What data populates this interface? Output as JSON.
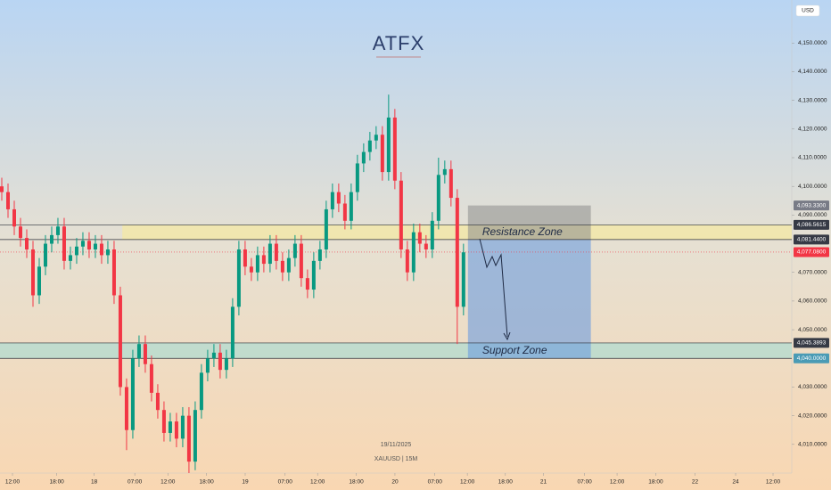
{
  "chart_data": {
    "type": "candlestick",
    "currency": "USD",
    "watermark": {
      "logo": "ATFX",
      "date": "19/11/2025",
      "symbol": "XAUUSD | 15M"
    },
    "up_color": "#089981",
    "down_color": "#f23645",
    "x": [
      0,
      1,
      2,
      3,
      4,
      5,
      6,
      7,
      8,
      9,
      10,
      11,
      12,
      13,
      14,
      15,
      16,
      17,
      18,
      19,
      20,
      21,
      22,
      23,
      24,
      25,
      26,
      27,
      28,
      29,
      30,
      31,
      32,
      33,
      34,
      35,
      36,
      37,
      38,
      39,
      40,
      41,
      42,
      43,
      44,
      45,
      46,
      47,
      48,
      49,
      50,
      51,
      52,
      53,
      54,
      55,
      56,
      57,
      58,
      59,
      60,
      61,
      62,
      63,
      64,
      65,
      66,
      67,
      68,
      69,
      70,
      71,
      72,
      73,
      74
    ],
    "open": [
      4100,
      4098,
      4092,
      4086,
      4082,
      4078,
      4062,
      4072,
      4080,
      4083,
      4086,
      4074,
      4076,
      4079,
      4081,
      4078,
      4080,
      4076,
      4078,
      4062,
      4030,
      4015,
      4040,
      4045,
      4038,
      4028,
      4022,
      4014,
      4018,
      4012,
      4020,
      4004,
      4022,
      4035,
      4040,
      4042,
      4036,
      4040,
      4058,
      4078,
      4072,
      4070,
      4076,
      4073,
      4080,
      4074,
      4070,
      4075,
      4080,
      4068,
      4064,
      4074,
      4078,
      4092,
      4098,
      4094,
      4088,
      4098,
      4108,
      4112,
      4116,
      4118,
      4105,
      4124,
      4102,
      4078,
      4070,
      4084,
      4080,
      4078,
      4088,
      4104,
      4106,
      4096,
      4058
    ],
    "high": [
      4103,
      4101,
      4095,
      4089,
      4085,
      4081,
      4075,
      4083,
      4086,
      4089,
      4089,
      4079,
      4082,
      4084,
      4084,
      4083,
      4083,
      4081,
      4081,
      4065,
      4033,
      4043,
      4048,
      4048,
      4041,
      4031,
      4025,
      4021,
      4021,
      4023,
      4023,
      4025,
      4038,
      4043,
      4045,
      4045,
      4043,
      4061,
      4081,
      4081,
      4075,
      4079,
      4079,
      4083,
      4083,
      4077,
      4078,
      4083,
      4083,
      4071,
      4077,
      4081,
      4095,
      4101,
      4101,
      4097,
      4101,
      4111,
      4115,
      4119,
      4121,
      4121,
      4132,
      4127,
      4105,
      4081,
      4087,
      4087,
      4083,
      4091,
      4110,
      4109,
      4109,
      4099,
      4080
    ],
    "low": [
      4095,
      4089,
      4083,
      4079,
      4075,
      4058,
      4059,
      4069,
      4077,
      4080,
      4071,
      4071,
      4073,
      4076,
      4075,
      4075,
      4073,
      4073,
      4059,
      4027,
      4008,
      4012,
      4037,
      4035,
      4025,
      4019,
      4011,
      4011,
      4009,
      4009,
      4000,
      4001,
      4019,
      4032,
      4037,
      4033,
      4033,
      4037,
      4055,
      4069,
      4067,
      4067,
      4070,
      4070,
      4071,
      4067,
      4067,
      4072,
      4065,
      4061,
      4061,
      4071,
      4075,
      4089,
      4091,
      4085,
      4085,
      4095,
      4105,
      4109,
      4113,
      4102,
      4102,
      4099,
      4075,
      4067,
      4067,
      4077,
      4075,
      4075,
      4085,
      4101,
      4093,
      4045,
      4055
    ],
    "close": [
      4098,
      4092,
      4086,
      4082,
      4078,
      4062,
      4072,
      4080,
      4083,
      4086,
      4074,
      4076,
      4079,
      4081,
      4078,
      4080,
      4076,
      4078,
      4062,
      4030,
      4015,
      4040,
      4045,
      4038,
      4028,
      4022,
      4014,
      4018,
      4012,
      4020,
      4004,
      4022,
      4035,
      4040,
      4042,
      4036,
      4040,
      4058,
      4078,
      4072,
      4070,
      4076,
      4073,
      4080,
      4074,
      4070,
      4075,
      4080,
      4068,
      4064,
      4074,
      4078,
      4092,
      4098,
      4094,
      4088,
      4098,
      4108,
      4112,
      4116,
      4118,
      4105,
      4124,
      4102,
      4078,
      4070,
      4084,
      4080,
      4078,
      4088,
      4104,
      4106,
      4096,
      4058,
      4077
    ],
    "xlim": [
      0,
      126.9
    ],
    "xticks": [
      {
        "value": 2,
        "label": "12:00"
      },
      {
        "value": 9.1,
        "label": "18:00"
      },
      {
        "value": 15.1,
        "label": "18"
      },
      {
        "value": 21.6,
        "label": "07:00"
      },
      {
        "value": 26.9,
        "label": "12:00"
      },
      {
        "value": 33.1,
        "label": "18:00"
      },
      {
        "value": 39.3,
        "label": "19"
      },
      {
        "value": 45.7,
        "label": "07:00"
      },
      {
        "value": 50.9,
        "label": "12:00"
      },
      {
        "value": 57.1,
        "label": "18:00"
      },
      {
        "value": 63.3,
        "label": "20"
      },
      {
        "value": 69.7,
        "label": "07:00"
      },
      {
        "value": 74.9,
        "label": "12:00"
      },
      {
        "value": 81,
        "label": "18:00"
      },
      {
        "value": 87.1,
        "label": "21"
      },
      {
        "value": 93.7,
        "label": "07:00"
      },
      {
        "value": 98.9,
        "label": "12:00"
      },
      {
        "value": 105.1,
        "label": "18:00"
      },
      {
        "value": 111.4,
        "label": "22"
      },
      {
        "value": 117.9,
        "label": "24"
      },
      {
        "value": 123.9,
        "label": "12:00"
      }
    ],
    "ylim": [
      4000,
      4165
    ],
    "yticks": [
      {
        "value": 4150,
        "label": "4,150.0000"
      },
      {
        "value": 4140,
        "label": "4,140.0000"
      },
      {
        "value": 4130,
        "label": "4,130.0000"
      },
      {
        "value": 4120,
        "label": "4,120.0000"
      },
      {
        "value": 4110,
        "label": "4,110.0000"
      },
      {
        "value": 4100,
        "label": "4,100.0000"
      },
      {
        "value": 4090,
        "label": "4,090.0000"
      },
      {
        "value": 4070,
        "label": "4,070.0000"
      },
      {
        "value": 4060,
        "label": "4,060.0000"
      },
      {
        "value": 4050,
        "label": "4,050.0000"
      },
      {
        "value": 4030,
        "label": "4,030.0000"
      },
      {
        "value": 4020,
        "label": "4,020.0000"
      },
      {
        "value": 4010,
        "label": "4,010.0000"
      }
    ],
    "price_labels": [
      {
        "value": 4093.33,
        "label": "4,093.3300",
        "color": "#787b86"
      },
      {
        "value": 4086.5615,
        "label": "4,086.5615",
        "color": "#363a45"
      },
      {
        "value": 4081.44,
        "label": "4,081.4400",
        "color": "#363a45"
      },
      {
        "value": 4077.08,
        "label": "4,077.0800",
        "color": "#f23645"
      },
      {
        "value": 4045.3893,
        "label": "4,045.3893",
        "color": "#363a45"
      },
      {
        "value": 4040,
        "label": "4,040.0000",
        "color": "#4a9bb5"
      }
    ],
    "zones": [
      {
        "name": "Resistance Zone",
        "from": 4081.44,
        "to": 4086.5615,
        "x": [
          19.6,
          126.9
        ],
        "color": "#f3e7a6"
      },
      {
        "name": "Support Zone",
        "from": 4040,
        "to": 4045.3893,
        "x": [
          0,
          126.9
        ],
        "color": "#b5dccf"
      }
    ],
    "position": {
      "x": [
        75,
        94.7
      ],
      "top": 4093.33,
      "entry": 4081.44,
      "bottom": 4040
    }
  }
}
